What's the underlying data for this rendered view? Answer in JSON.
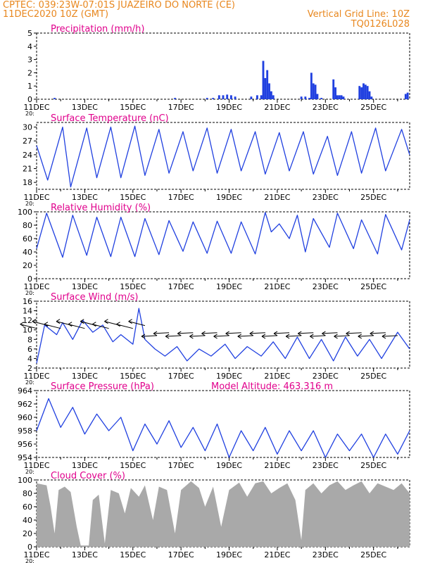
{
  "header": {
    "line1": "CPTEC:   039:23W-07:01S   JUAZEIRO DO NORTE (CE)",
    "line2": "11DEC2020 10Z (GMT)",
    "grid_note": "Vertical Grid Line: 10Z",
    "run_id": "TQ0126L028"
  },
  "colors": {
    "header": "#e8871e",
    "title": "#e0008c",
    "line": "#2040e0",
    "cloud": "#a9a9a9",
    "axis": "#000000"
  },
  "x_axis": {
    "start": "2020-12-11T10:00Z",
    "end": "2020-12-26T22:00Z",
    "tick_labels": [
      "11DEC",
      "13DEC",
      "15DEC",
      "17DEC",
      "19DEC",
      "21DEC",
      "23DEC",
      "25DEC"
    ],
    "minor_tick": "daily",
    "major_tick": "every 2 days",
    "grid": "none",
    "lower_left_stray": "20:"
  },
  "chart_data": [
    {
      "type": "bar",
      "title": "Precipitation (mm/h)",
      "ylim": [
        0,
        5
      ],
      "yticks": [
        0,
        1,
        2,
        3,
        4,
        5
      ],
      "time_step_hours": 2,
      "events": [
        {
          "t": "2020-12-12T04:00Z",
          "v": 0.1
        },
        {
          "t": "2020-12-17T04:00Z",
          "v": 0.1
        },
        {
          "t": "2020-12-18T12:00Z",
          "v": 0.1
        },
        {
          "t": "2020-12-18T18:00Z",
          "v": 0.1
        },
        {
          "t": "2020-12-19T00:00Z",
          "v": 0.3
        },
        {
          "t": "2020-12-19T04:00Z",
          "v": 0.3
        },
        {
          "t": "2020-12-19T08:00Z",
          "v": 0.35
        },
        {
          "t": "2020-12-19T12:00Z",
          "v": 0.3
        },
        {
          "t": "2020-12-19T16:00Z",
          "v": 0.2
        },
        {
          "t": "2020-12-20T08:00Z",
          "v": 0.2
        },
        {
          "t": "2020-12-20T14:00Z",
          "v": 0.3
        },
        {
          "t": "2020-12-20T18:00Z",
          "v": 0.3
        },
        {
          "t": "2020-12-20T20:00Z",
          "v": 2.9
        },
        {
          "t": "2020-12-20T22:00Z",
          "v": 1.6
        },
        {
          "t": "2020-12-21T00:00Z",
          "v": 2.2
        },
        {
          "t": "2020-12-21T02:00Z",
          "v": 1.2
        },
        {
          "t": "2020-12-21T04:00Z",
          "v": 0.6
        },
        {
          "t": "2020-12-21T06:00Z",
          "v": 0.3
        },
        {
          "t": "2020-12-22T10:00Z",
          "v": 0.2
        },
        {
          "t": "2020-12-22T14:00Z",
          "v": 0.2
        },
        {
          "t": "2020-12-22T18:00Z",
          "v": 0.1
        },
        {
          "t": "2020-12-22T20:00Z",
          "v": 2.0
        },
        {
          "t": "2020-12-22T22:00Z",
          "v": 1.2
        },
        {
          "t": "2020-12-23T00:00Z",
          "v": 1.1
        },
        {
          "t": "2020-12-23T02:00Z",
          "v": 0.4
        },
        {
          "t": "2020-12-23T06:00Z",
          "v": 0.1
        },
        {
          "t": "2020-12-23T18:00Z",
          "v": 1.5
        },
        {
          "t": "2020-12-23T20:00Z",
          "v": 0.9
        },
        {
          "t": "2020-12-23T22:00Z",
          "v": 0.3
        },
        {
          "t": "2020-12-24T00:00Z",
          "v": 0.3
        },
        {
          "t": "2020-12-24T02:00Z",
          "v": 0.3
        },
        {
          "t": "2020-12-24T04:00Z",
          "v": 0.2
        },
        {
          "t": "2020-12-24T20:00Z",
          "v": 1.0
        },
        {
          "t": "2020-12-24T22:00Z",
          "v": 0.9
        },
        {
          "t": "2020-12-25T00:00Z",
          "v": 1.2
        },
        {
          "t": "2020-12-25T02:00Z",
          "v": 1.1
        },
        {
          "t": "2020-12-25T04:00Z",
          "v": 1.0
        },
        {
          "t": "2020-12-25T06:00Z",
          "v": 0.6
        },
        {
          "t": "2020-12-25T08:00Z",
          "v": 0.2
        },
        {
          "t": "2020-12-26T18:00Z",
          "v": 0.4
        },
        {
          "t": "2020-12-26T20:00Z",
          "v": 0.5
        }
      ]
    },
    {
      "type": "line",
      "title": "Surface Temperature (nC)",
      "ylim": [
        16.5,
        31
      ],
      "yticks": [
        18,
        21,
        24,
        27,
        30
      ],
      "points": [
        [
          "2020-12-11T10:00Z",
          26
        ],
        [
          "2020-12-11T21:00Z",
          18.5
        ],
        [
          "2020-12-12T12:00Z",
          30
        ],
        [
          "2020-12-12T20:00Z",
          17
        ],
        [
          "2020-12-13T12:00Z",
          29.8
        ],
        [
          "2020-12-13T22:00Z",
          19
        ],
        [
          "2020-12-14T12:00Z",
          30
        ],
        [
          "2020-12-14T22:00Z",
          19
        ],
        [
          "2020-12-15T12:00Z",
          30.2
        ],
        [
          "2020-12-15T22:00Z",
          19.5
        ],
        [
          "2020-12-16T12:00Z",
          29.5
        ],
        [
          "2020-12-16T22:00Z",
          20
        ],
        [
          "2020-12-17T12:00Z",
          29
        ],
        [
          "2020-12-17T22:00Z",
          20.5
        ],
        [
          "2020-12-18T12:00Z",
          29.8
        ],
        [
          "2020-12-18T22:00Z",
          20
        ],
        [
          "2020-12-19T12:00Z",
          29.5
        ],
        [
          "2020-12-19T22:00Z",
          20.5
        ],
        [
          "2020-12-20T12:00Z",
          29
        ],
        [
          "2020-12-20T22:00Z",
          19.8
        ],
        [
          "2020-12-21T12:00Z",
          28.8
        ],
        [
          "2020-12-21T22:00Z",
          20.5
        ],
        [
          "2020-12-22T12:00Z",
          29
        ],
        [
          "2020-12-22T22:00Z",
          19.8
        ],
        [
          "2020-12-23T12:00Z",
          28
        ],
        [
          "2020-12-23T22:00Z",
          19.5
        ],
        [
          "2020-12-24T12:00Z",
          29
        ],
        [
          "2020-12-24T22:00Z",
          20
        ],
        [
          "2020-12-25T12:00Z",
          29.8
        ],
        [
          "2020-12-25T22:00Z",
          20.5
        ],
        [
          "2020-12-26T14:00Z",
          29.5
        ],
        [
          "2020-12-26T22:00Z",
          24
        ]
      ]
    },
    {
      "type": "line",
      "title": "Relative Humidity (%)",
      "ylim": [
        0,
        100
      ],
      "yticks": [
        0,
        20,
        40,
        60,
        80,
        100
      ],
      "points": [
        [
          "2020-12-11T10:00Z",
          45
        ],
        [
          "2020-12-11T20:00Z",
          98
        ],
        [
          "2020-12-12T12:00Z",
          32
        ],
        [
          "2020-12-12T22:00Z",
          95
        ],
        [
          "2020-12-13T12:00Z",
          35
        ],
        [
          "2020-12-13T22:00Z",
          92
        ],
        [
          "2020-12-14T12:00Z",
          33
        ],
        [
          "2020-12-14T22:00Z",
          92
        ],
        [
          "2020-12-15T12:00Z",
          33
        ],
        [
          "2020-12-15T22:00Z",
          90
        ],
        [
          "2020-12-16T12:00Z",
          36
        ],
        [
          "2020-12-16T22:00Z",
          87
        ],
        [
          "2020-12-17T12:00Z",
          41
        ],
        [
          "2020-12-17T22:00Z",
          85
        ],
        [
          "2020-12-18T12:00Z",
          38
        ],
        [
          "2020-12-18T22:00Z",
          86
        ],
        [
          "2020-12-19T12:00Z",
          38
        ],
        [
          "2020-12-19T22:00Z",
          85
        ],
        [
          "2020-12-20T12:00Z",
          37
        ],
        [
          "2020-12-20T22:00Z",
          99
        ],
        [
          "2020-12-21T04:00Z",
          70
        ],
        [
          "2020-12-21T12:00Z",
          82
        ],
        [
          "2020-12-21T22:00Z",
          60
        ],
        [
          "2020-12-22T06:00Z",
          95
        ],
        [
          "2020-12-22T14:00Z",
          40
        ],
        [
          "2020-12-22T22:00Z",
          90
        ],
        [
          "2020-12-23T14:00Z",
          47
        ],
        [
          "2020-12-23T22:00Z",
          98
        ],
        [
          "2020-12-24T14:00Z",
          45
        ],
        [
          "2020-12-24T22:00Z",
          88
        ],
        [
          "2020-12-25T14:00Z",
          37
        ],
        [
          "2020-12-25T22:00Z",
          96
        ],
        [
          "2020-12-26T14:00Z",
          43
        ],
        [
          "2020-12-26T22:00Z",
          88
        ]
      ]
    },
    {
      "type": "line",
      "title": "Surface Wind (m/s)",
      "ylim": [
        2,
        16
      ],
      "yticks": [
        2,
        4,
        6,
        8,
        10,
        12,
        14,
        16
      ],
      "barbs": "wind-vector arrows along ~9-11 m/s",
      "points": [
        [
          "2020-12-11T10:00Z",
          3
        ],
        [
          "2020-12-11T18:00Z",
          11
        ],
        [
          "2020-12-12T06:00Z",
          9
        ],
        [
          "2020-12-12T12:00Z",
          11.5
        ],
        [
          "2020-12-12T22:00Z",
          8
        ],
        [
          "2020-12-13T08:00Z",
          12
        ],
        [
          "2020-12-13T18:00Z",
          9.5
        ],
        [
          "2020-12-14T04:00Z",
          11
        ],
        [
          "2020-12-14T14:00Z",
          7.5
        ],
        [
          "2020-12-14T22:00Z",
          9
        ],
        [
          "2020-12-15T10:00Z",
          7
        ],
        [
          "2020-12-15T16:00Z",
          14.5
        ],
        [
          "2020-12-15T22:00Z",
          8
        ],
        [
          "2020-12-16T08:00Z",
          6
        ],
        [
          "2020-12-16T18:00Z",
          4.5
        ],
        [
          "2020-12-17T06:00Z",
          6.5
        ],
        [
          "2020-12-17T16:00Z",
          3.5
        ],
        [
          "2020-12-18T04:00Z",
          6
        ],
        [
          "2020-12-18T16:00Z",
          4.5
        ],
        [
          "2020-12-19T06:00Z",
          7
        ],
        [
          "2020-12-19T16:00Z",
          4
        ],
        [
          "2020-12-20T04:00Z",
          6.5
        ],
        [
          "2020-12-20T18:00Z",
          4.5
        ],
        [
          "2020-12-21T06:00Z",
          7.5
        ],
        [
          "2020-12-21T18:00Z",
          4
        ],
        [
          "2020-12-22T06:00Z",
          8.5
        ],
        [
          "2020-12-22T18:00Z",
          4
        ],
        [
          "2020-12-23T06:00Z",
          8
        ],
        [
          "2020-12-23T18:00Z",
          3.5
        ],
        [
          "2020-12-24T06:00Z",
          8.5
        ],
        [
          "2020-12-24T18:00Z",
          4.5
        ],
        [
          "2020-12-25T06:00Z",
          8
        ],
        [
          "2020-12-25T18:00Z",
          4
        ],
        [
          "2020-12-26T10:00Z",
          9.5
        ],
        [
          "2020-12-26T22:00Z",
          6
        ]
      ]
    },
    {
      "type": "line",
      "title": "Surface Pressure (hPa)",
      "annotation": "Model Altitude: 463.316 m",
      "ylim": [
        954,
        964
      ],
      "yticks": [
        954,
        956,
        958,
        960,
        962,
        964
      ],
      "points": [
        [
          "2020-12-11T10:00Z",
          958
        ],
        [
          "2020-12-11T22:00Z",
          962.8
        ],
        [
          "2020-12-12T10:00Z",
          958.5
        ],
        [
          "2020-12-12T22:00Z",
          961.5
        ],
        [
          "2020-12-13T10:00Z",
          957.5
        ],
        [
          "2020-12-13T22:00Z",
          960.5
        ],
        [
          "2020-12-14T10:00Z",
          958
        ],
        [
          "2020-12-14T22:00Z",
          960
        ],
        [
          "2020-12-15T10:00Z",
          955
        ],
        [
          "2020-12-15T22:00Z",
          959
        ],
        [
          "2020-12-16T10:00Z",
          956
        ],
        [
          "2020-12-16T22:00Z",
          959.5
        ],
        [
          "2020-12-17T10:00Z",
          955.5
        ],
        [
          "2020-12-17T22:00Z",
          958.5
        ],
        [
          "2020-12-18T10:00Z",
          955
        ],
        [
          "2020-12-18T22:00Z",
          959
        ],
        [
          "2020-12-19T10:00Z",
          954
        ],
        [
          "2020-12-19T22:00Z",
          958
        ],
        [
          "2020-12-20T10:00Z",
          955
        ],
        [
          "2020-12-20T22:00Z",
          958.5
        ],
        [
          "2020-12-21T10:00Z",
          954.5
        ],
        [
          "2020-12-21T22:00Z",
          958
        ],
        [
          "2020-12-22T10:00Z",
          955
        ],
        [
          "2020-12-22T22:00Z",
          958
        ],
        [
          "2020-12-23T10:00Z",
          954
        ],
        [
          "2020-12-23T22:00Z",
          957.5
        ],
        [
          "2020-12-24T10:00Z",
          955
        ],
        [
          "2020-12-24T22:00Z",
          957.5
        ],
        [
          "2020-12-25T10:00Z",
          954
        ],
        [
          "2020-12-25T22:00Z",
          957.5
        ],
        [
          "2020-12-26T10:00Z",
          954.5
        ],
        [
          "2020-12-26T22:00Z",
          958
        ]
      ]
    },
    {
      "type": "area",
      "title": "Cloud Cover (%)",
      "ylim": [
        0,
        100
      ],
      "yticks": [
        0,
        20,
        40,
        60,
        80,
        100
      ],
      "points": [
        [
          "2020-12-11T10:00Z",
          95
        ],
        [
          "2020-12-11T20:00Z",
          92
        ],
        [
          "2020-12-12T00:00Z",
          60
        ],
        [
          "2020-12-12T04:00Z",
          20
        ],
        [
          "2020-12-12T08:00Z",
          85
        ],
        [
          "2020-12-12T14:00Z",
          90
        ],
        [
          "2020-12-12T20:00Z",
          82
        ],
        [
          "2020-12-13T02:00Z",
          30
        ],
        [
          "2020-12-13T06:00Z",
          2
        ],
        [
          "2020-12-13T14:00Z",
          2
        ],
        [
          "2020-12-13T18:00Z",
          70
        ],
        [
          "2020-12-14T00:00Z",
          78
        ],
        [
          "2020-12-14T06:00Z",
          5
        ],
        [
          "2020-12-14T12:00Z",
          85
        ],
        [
          "2020-12-14T20:00Z",
          80
        ],
        [
          "2020-12-15T02:00Z",
          50
        ],
        [
          "2020-12-15T08:00Z",
          88
        ],
        [
          "2020-12-15T16:00Z",
          75
        ],
        [
          "2020-12-15T22:00Z",
          92
        ],
        [
          "2020-12-16T06:00Z",
          40
        ],
        [
          "2020-12-16T12:00Z",
          90
        ],
        [
          "2020-12-16T20:00Z",
          85
        ],
        [
          "2020-12-17T04:00Z",
          20
        ],
        [
          "2020-12-17T10:00Z",
          85
        ],
        [
          "2020-12-17T20:00Z",
          98
        ],
        [
          "2020-12-18T04:00Z",
          88
        ],
        [
          "2020-12-18T10:00Z",
          60
        ],
        [
          "2020-12-18T18:00Z",
          90
        ],
        [
          "2020-12-19T02:00Z",
          30
        ],
        [
          "2020-12-19T10:00Z",
          85
        ],
        [
          "2020-12-19T20:00Z",
          96
        ],
        [
          "2020-12-20T04:00Z",
          75
        ],
        [
          "2020-12-20T12:00Z",
          95
        ],
        [
          "2020-12-20T20:00Z",
          98
        ],
        [
          "2020-12-21T04:00Z",
          80
        ],
        [
          "2020-12-21T12:00Z",
          88
        ],
        [
          "2020-12-21T20:00Z",
          95
        ],
        [
          "2020-12-22T04:00Z",
          70
        ],
        [
          "2020-12-22T10:00Z",
          10
        ],
        [
          "2020-12-22T14:00Z",
          85
        ],
        [
          "2020-12-22T22:00Z",
          95
        ],
        [
          "2020-12-23T06:00Z",
          80
        ],
        [
          "2020-12-23T14:00Z",
          92
        ],
        [
          "2020-12-23T22:00Z",
          98
        ],
        [
          "2020-12-24T06:00Z",
          85
        ],
        [
          "2020-12-24T14:00Z",
          92
        ],
        [
          "2020-12-24T22:00Z",
          98
        ],
        [
          "2020-12-25T06:00Z",
          80
        ],
        [
          "2020-12-25T14:00Z",
          95
        ],
        [
          "2020-12-25T22:00Z",
          90
        ],
        [
          "2020-12-26T06:00Z",
          85
        ],
        [
          "2020-12-26T14:00Z",
          95
        ],
        [
          "2020-12-26T22:00Z",
          80
        ]
      ]
    }
  ]
}
